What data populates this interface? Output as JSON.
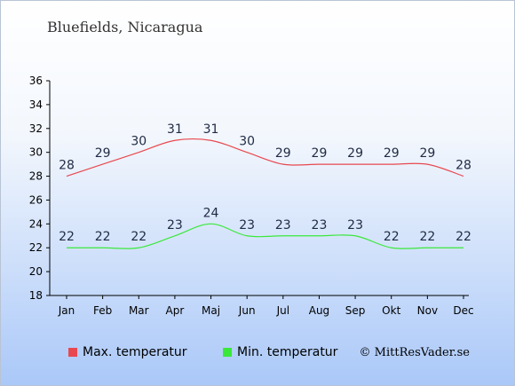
{
  "title": "Bluefields, Nicaragua",
  "credit": "© MittResVader.se",
  "chart_data": {
    "type": "line",
    "categories": [
      "Jan",
      "Feb",
      "Mar",
      "Apr",
      "Maj",
      "Jun",
      "Jul",
      "Aug",
      "Sep",
      "Okt",
      "Nov",
      "Dec"
    ],
    "ylim": [
      18,
      36
    ],
    "yticks": [
      18,
      20,
      22,
      24,
      26,
      28,
      30,
      32,
      34,
      36
    ],
    "grid": false,
    "legend": "bottom",
    "series": [
      {
        "name": "Max. temperatur",
        "color": "#e8484f",
        "values": [
          28,
          29,
          30,
          31,
          31,
          30,
          29,
          29,
          29,
          29,
          29,
          28
        ]
      },
      {
        "name": "Min. temperatur",
        "color": "#3ae83a",
        "values": [
          22,
          22,
          22,
          23,
          24,
          23,
          23,
          23,
          23,
          22,
          22,
          22
        ]
      }
    ]
  }
}
